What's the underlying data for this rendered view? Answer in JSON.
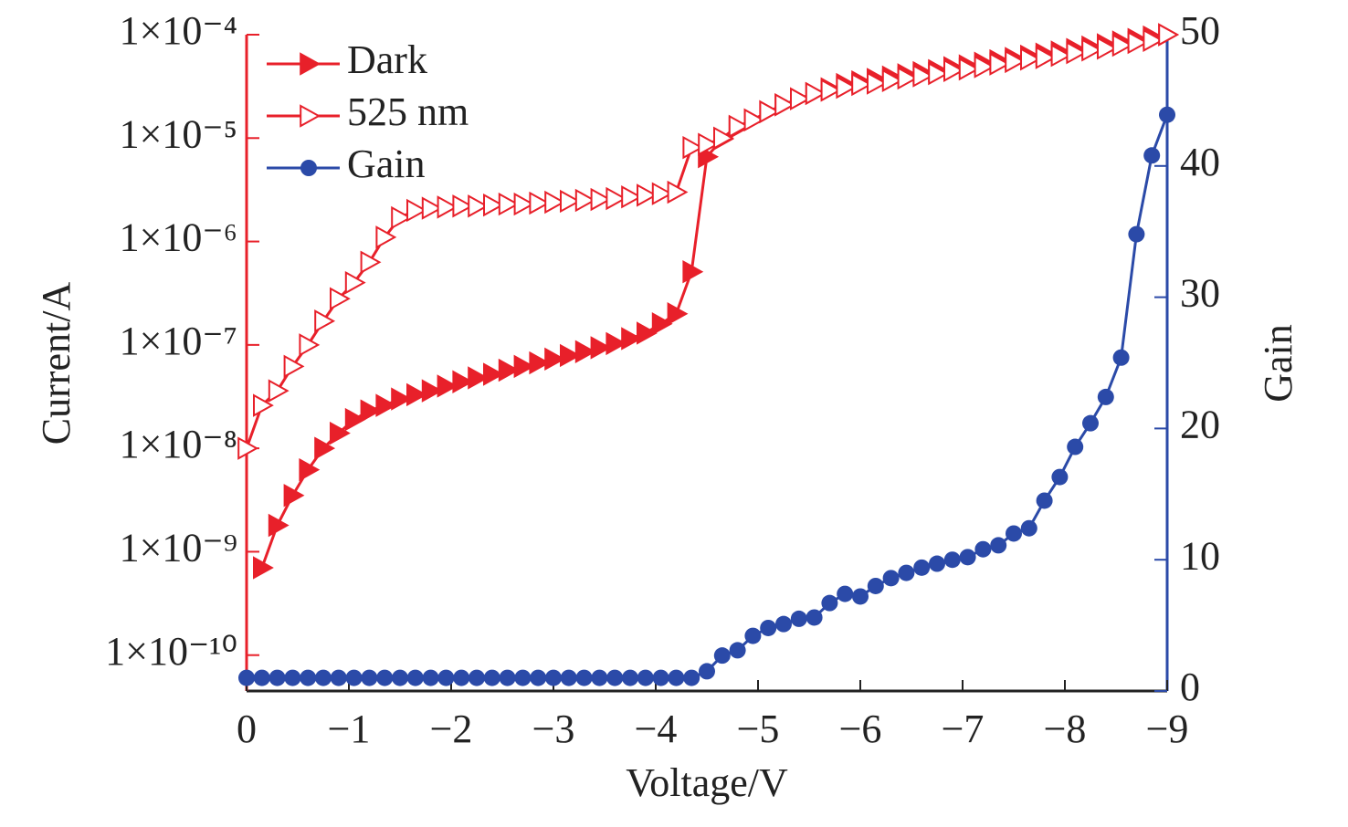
{
  "chart_data": {
    "type": "line",
    "xlabel": "Voltage/V",
    "ylabel": "Current/A",
    "y2label": "Gain",
    "x": [
      0,
      -0.15,
      -0.3,
      -0.45,
      -0.6,
      -0.75,
      -0.9,
      -1.05,
      -1.2,
      -1.35,
      -1.5,
      -1.65,
      -1.8,
      -1.95,
      -2.1,
      -2.25,
      -2.4,
      -2.55,
      -2.7,
      -2.85,
      -3,
      -3.15,
      -3.3,
      -3.45,
      -3.6,
      -3.75,
      -3.9,
      -4.05,
      -4.2,
      -4.35,
      -4.5,
      -4.65,
      -4.8,
      -4.95,
      -5.1,
      -5.25,
      -5.4,
      -5.55,
      -5.7,
      -5.85,
      -6,
      -6.15,
      -6.3,
      -6.45,
      -6.6,
      -6.75,
      -6.9,
      -7.05,
      -7.2,
      -7.35,
      -7.5,
      -7.65,
      -7.8,
      -7.95,
      -8.1,
      -8.25,
      -8.4,
      -8.55,
      -8.7,
      -8.85,
      -9
    ],
    "series": [
      {
        "name": "Dark",
        "color": "#e8202a",
        "marker": "filled-triangle",
        "axis": "y",
        "values": [
          null,
          7e-10,
          1.8e-09,
          3.5e-09,
          6.2e-09,
          1e-08,
          1.4e-08,
          1.9e-08,
          2.3e-08,
          2.6e-08,
          3e-08,
          3.3e-08,
          3.6e-08,
          4e-08,
          4.4e-08,
          4.8e-08,
          5.2e-08,
          5.7e-08,
          6.2e-08,
          6.7e-08,
          7.3e-08,
          7.9e-08,
          8.6e-08,
          9.4e-08,
          1.03e-07,
          1.15e-07,
          1.3e-07,
          1.6e-07,
          2e-07,
          5.1e-07,
          6.6e-06,
          9.8e-06,
          1.26e-05,
          1.5e-05,
          1.8e-05,
          2.1e-05,
          2.4e-05,
          2.7e-05,
          3e-05,
          3.3e-05,
          3.5e-05,
          3.7e-05,
          3.9e-05,
          4.1e-05,
          4.3e-05,
          4.5e-05,
          4.8e-05,
          5e-05,
          5.3e-05,
          5.6e-05,
          5.9e-05,
          6.2e-05,
          6.5e-05,
          6.8e-05,
          7.2e-05,
          7.6e-05,
          8e-05,
          8.5e-05,
          9e-05,
          9.5e-05,
          0.0001
        ]
      },
      {
        "name": "525 nm",
        "color": "#e8202a",
        "marker": "open-triangle",
        "axis": "y",
        "values": [
          1e-08,
          2.6e-08,
          3.6e-08,
          6.2e-08,
          1e-07,
          1.7e-07,
          2.8e-07,
          4e-07,
          6.3e-07,
          1.1e-06,
          1.7e-06,
          2e-06,
          2.1e-06,
          2.15e-06,
          2.2e-06,
          2.2e-06,
          2.25e-06,
          2.3e-06,
          2.3e-06,
          2.35e-06,
          2.4e-06,
          2.45e-06,
          2.5e-06,
          2.55e-06,
          2.6e-06,
          2.7e-06,
          2.8e-06,
          2.9e-06,
          3e-06,
          8.1e-06,
          8.7e-06,
          1e-05,
          1.3e-05,
          1.5e-05,
          1.8e-05,
          2.1e-05,
          2.4e-05,
          2.7e-05,
          2.9e-05,
          3.1e-05,
          3.3e-05,
          3.4e-05,
          3.6e-05,
          3.8e-05,
          4e-05,
          4.2e-05,
          4.5e-05,
          4.65e-05,
          4.9e-05,
          5.2e-05,
          5.5e-05,
          5.8e-05,
          6e-05,
          6.3e-05,
          6.7e-05,
          7.1e-05,
          7.4e-05,
          7.9e-05,
          8.4e-05,
          8.8e-05,
          0.0001
        ]
      },
      {
        "name": "Gain",
        "color": "#2b4aa8",
        "marker": "circle",
        "axis": "y2",
        "values": [
          1,
          1,
          1,
          1,
          1,
          1,
          1,
          1,
          1,
          1,
          1,
          1,
          1,
          1,
          1,
          1,
          1,
          1,
          1,
          1,
          1,
          1,
          1,
          1,
          1,
          1,
          1,
          1,
          1,
          1,
          1.5,
          2.7,
          3.1,
          4.2,
          4.8,
          5.1,
          5.5,
          5.6,
          6.7,
          7.4,
          7.2,
          8.0,
          8.6,
          9.0,
          9.4,
          9.7,
          10.0,
          10.2,
          10.8,
          11.1,
          12.0,
          12.4,
          14.5,
          16.3,
          18.6,
          20.4,
          22.4,
          25.4,
          34.8,
          40.8,
          43.9
        ]
      }
    ],
    "xlim": [
      0,
      -9
    ],
    "xticks": [
      0,
      {
        "value": -1,
        "label": "−1"
      },
      {
        "value": -2,
        "label": "−2"
      },
      {
        "value": -3,
        "label": "−3"
      },
      {
        "value": -4,
        "label": "−4"
      },
      {
        "value": -5,
        "label": "−5"
      },
      {
        "value": -6,
        "label": "−6"
      },
      {
        "value": -7,
        "label": "−7"
      },
      {
        "value": -8,
        "label": "−8"
      },
      {
        "value": -9,
        "label": "−9"
      }
    ],
    "ylim": [
      4.5e-11,
      0.0001
    ],
    "ylog": true,
    "yticks": [
      {
        "value": 1e-10,
        "label": "1×10⁻¹⁰"
      },
      {
        "value": 1e-09,
        "label": "1×10⁻⁹"
      },
      {
        "value": 1e-08,
        "label": "1×10⁻⁸"
      },
      {
        "value": 1e-07,
        "label": "1×10⁻⁷"
      },
      {
        "value": 1e-06,
        "label": "1×10⁻⁶"
      },
      {
        "value": 1e-05,
        "label": "1×10⁻⁵"
      },
      {
        "value": 0.0001,
        "label": "1×10⁻⁴"
      }
    ],
    "y2lim": [
      0,
      50
    ],
    "y2ticks": [
      0,
      10,
      20,
      30,
      40,
      50
    ],
    "legend": "upper-left"
  }
}
